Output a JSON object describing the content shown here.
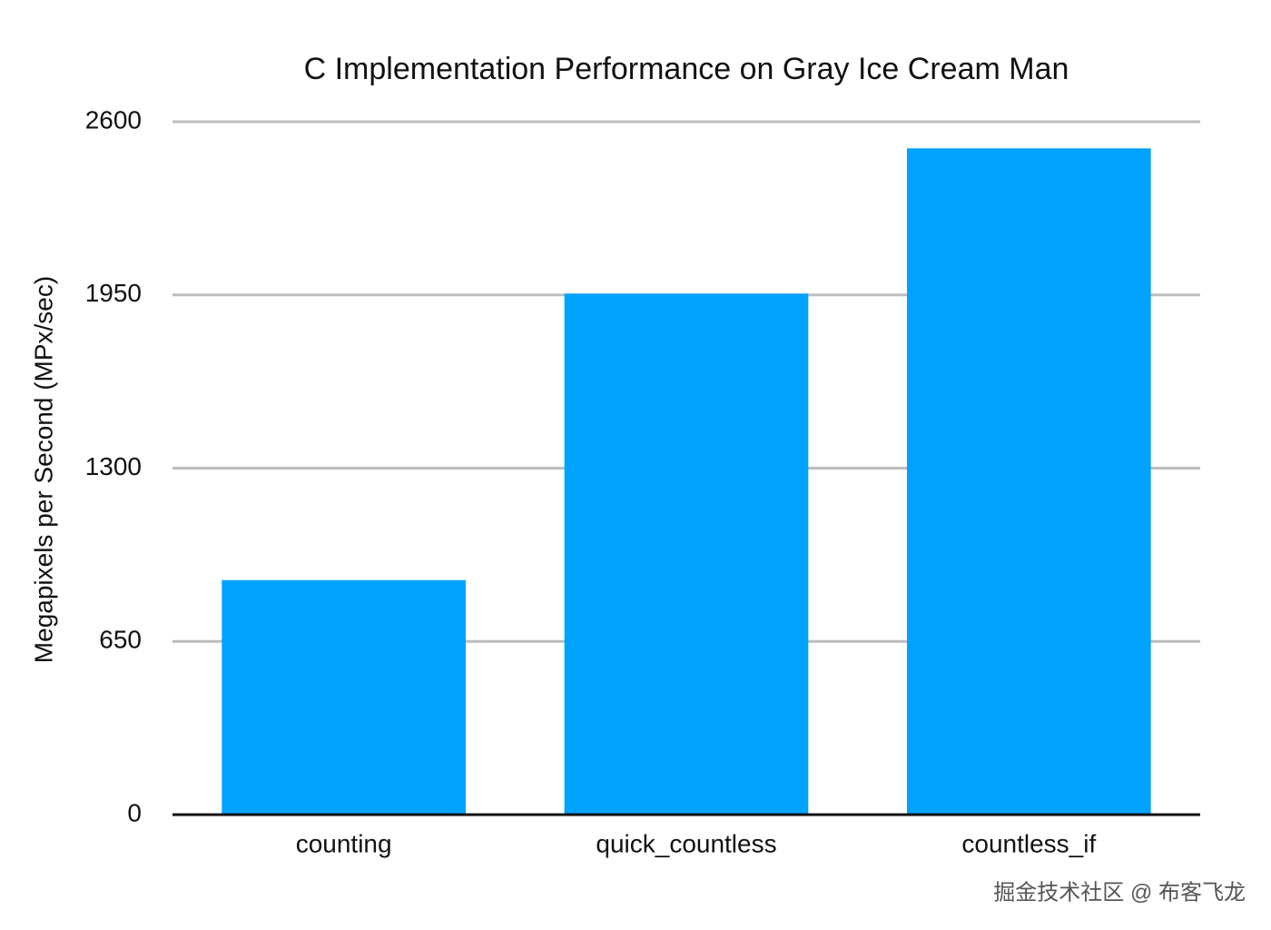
{
  "chart_data": {
    "type": "bar",
    "title": "C Implementation Performance on Gray Ice Cream Man",
    "y_label": "Megapixels per Second (MPx/sec)",
    "categories": [
      "counting",
      "quick_countless",
      "countless_if"
    ],
    "values": [
      880,
      1955,
      2500
    ],
    "color": "#00a2ff",
    "ylim": [
      0,
      2600
    ],
    "yticks": [
      0,
      650,
      1300,
      1950,
      2600
    ],
    "grid": true,
    "watermark": "掘金技术社区 @ 布客飞龙"
  }
}
